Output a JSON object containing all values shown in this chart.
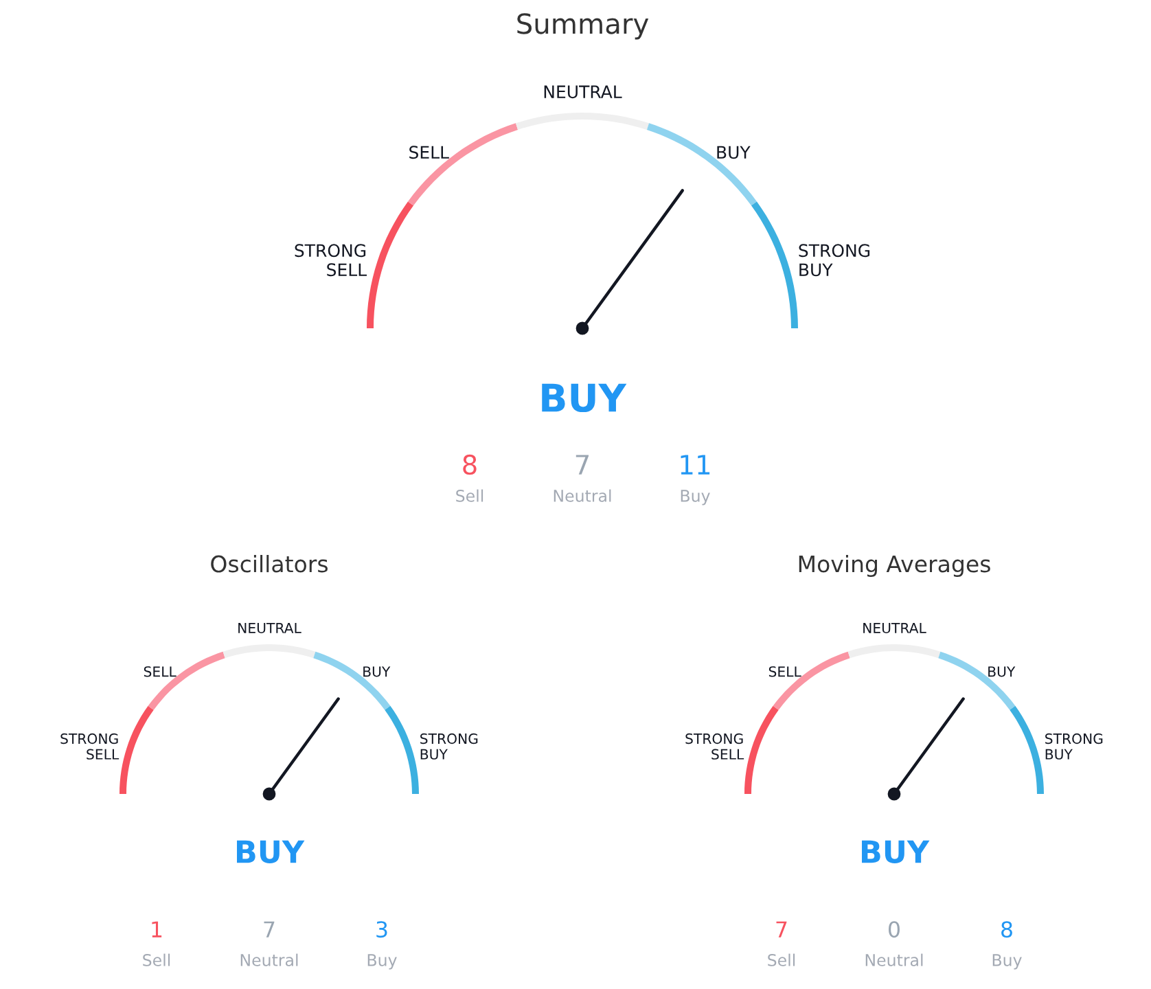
{
  "chart_data": [
    {
      "type": "donut",
      "title": "Summary",
      "categories": [
        "STRONG\nSELL",
        "SELL",
        "NEUTRAL",
        "BUY",
        "STRONG\nBUY"
      ],
      "values": [
        20,
        20,
        20,
        20,
        20
      ],
      "colors": [
        "#f7525f",
        "#fa95a3",
        "#efefef",
        "#8fd3ef",
        "#3cb0e0"
      ],
      "needle": "BUY",
      "annotations": [
        "BUY",
        "8",
        "Sell",
        "7",
        "Neutral",
        "11",
        "Buy"
      ]
    },
    {
      "type": "donut",
      "title": "Oscillators",
      "categories": [
        "STRONG\nSELL",
        "SELL",
        "NEUTRAL",
        "BUY",
        "STRONG\nBUY"
      ],
      "values": [
        20,
        20,
        20,
        20,
        20
      ],
      "colors": [
        "#f7525f",
        "#fa95a3",
        "#efefef",
        "#8fd3ef",
        "#3cb0e0"
      ],
      "needle": "BUY",
      "annotations": [
        "BUY",
        "1",
        "Sell",
        "7",
        "Neutral",
        "3",
        "Buy"
      ]
    },
    {
      "type": "donut",
      "title": "Moving Averages",
      "categories": [
        "STRONG\nSELL",
        "SELL",
        "NEUTRAL",
        "BUY",
        "STRONG\nBUY"
      ],
      "values": [
        20,
        20,
        20,
        20,
        20
      ],
      "colors": [
        "#f7525f",
        "#fa95a3",
        "#efefef",
        "#8fd3ef",
        "#3cb0e0"
      ],
      "needle": "BUY",
      "annotations": [
        "BUY",
        "7",
        "Sell",
        "0",
        "Neutral",
        "8",
        "Buy"
      ]
    }
  ]
}
